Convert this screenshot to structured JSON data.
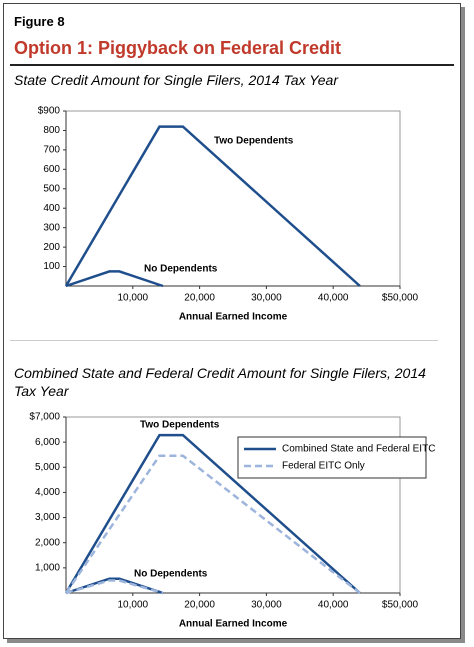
{
  "figure_label": "Figure 8",
  "title": "Option 1: Piggyback on Federal Credit",
  "chart_data": [
    {
      "type": "line",
      "title": "State Credit Amount for Single Filers, 2014 Tax Year",
      "xlabel": "Annual Earned Income",
      "xlim": [
        0,
        50000
      ],
      "xticks": [
        {
          "value": 10000,
          "label": "10,000"
        },
        {
          "value": 20000,
          "label": "20,000"
        },
        {
          "value": 30000,
          "label": "30,000"
        },
        {
          "value": 40000,
          "label": "40,000"
        },
        {
          "value": 50000,
          "label": "$50,000"
        }
      ],
      "ylim": [
        0,
        900
      ],
      "yticks": [
        100,
        200,
        300,
        400,
        500,
        600,
        700,
        800,
        {
          "value": 900,
          "label": "$900"
        }
      ],
      "series": [
        {
          "name": "Two Dependents",
          "color": "#1f4e8c",
          "x": [
            0,
            14000,
            17500,
            44000
          ],
          "values": [
            0,
            820,
            820,
            0
          ]
        },
        {
          "name": "No Dependents",
          "color": "#1f4e8c",
          "x": [
            0,
            6500,
            8000,
            14500
          ],
          "values": [
            0,
            75,
            75,
            0
          ]
        }
      ]
    },
    {
      "type": "line",
      "title": "Combined State and Federal Credit Amount for Single Filers, 2014 Tax Year",
      "xlabel": "Annual Earned Income",
      "xlim": [
        0,
        50000
      ],
      "xticks": [
        {
          "value": 10000,
          "label": "10,000"
        },
        {
          "value": 20000,
          "label": "20,000"
        },
        {
          "value": 30000,
          "label": "30,000"
        },
        {
          "value": 40000,
          "label": "40,000"
        },
        {
          "value": 50000,
          "label": "$50,000"
        }
      ],
      "ylim": [
        0,
        7000
      ],
      "yticks": [
        {
          "value": 1000,
          "label": "1,000"
        },
        {
          "value": 2000,
          "label": "2,000"
        },
        {
          "value": 3000,
          "label": "3,000"
        },
        {
          "value": 4000,
          "label": "4,000"
        },
        {
          "value": 5000,
          "label": "5,000"
        },
        {
          "value": 6000,
          "label": "6,000"
        },
        {
          "value": 7000,
          "label": "$7,000"
        }
      ],
      "legend": "upper right",
      "annotations": [
        "Two Dependents",
        "No Dependents"
      ],
      "series": [
        {
          "name": "Combined State and Federal EITC",
          "color": "#1f4e8c",
          "dashed": false,
          "x": [
            0,
            14000,
            17500,
            44000,
            null,
            0,
            6500,
            8000,
            14500
          ],
          "values": [
            0,
            6280,
            6280,
            0,
            null,
            0,
            570,
            570,
            0
          ]
        },
        {
          "name": "Federal EITC Only",
          "color": "#9db5dc",
          "dashed": true,
          "x": [
            0,
            14000,
            17500,
            44000,
            null,
            0,
            6500,
            8000,
            14500
          ],
          "values": [
            0,
            5460,
            5460,
            0,
            null,
            0,
            496,
            496,
            0
          ]
        }
      ]
    }
  ]
}
